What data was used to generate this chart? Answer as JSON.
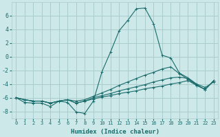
{
  "xlabel": "Humidex (Indice chaleur)",
  "background_color": "#cce8e8",
  "grid_color": "#aacccc",
  "line_color": "#1a6b6b",
  "xlim": [
    -0.5,
    23.5
  ],
  "ylim": [
    -9,
    8
  ],
  "yticks": [
    -8,
    -6,
    -4,
    -2,
    0,
    2,
    4,
    6
  ],
  "xticks": [
    0,
    1,
    2,
    3,
    4,
    5,
    6,
    7,
    8,
    9,
    10,
    11,
    12,
    13,
    14,
    15,
    16,
    17,
    18,
    19,
    20,
    21,
    22,
    23
  ],
  "lines": [
    {
      "x": [
        0,
        1,
        2,
        3,
        4,
        5,
        6,
        7,
        8,
        9,
        10,
        11,
        12,
        13,
        14,
        15,
        16,
        17,
        18,
        19,
        20,
        21,
        22,
        23
      ],
      "y": [
        -6.0,
        -6.7,
        -6.8,
        -6.8,
        -7.3,
        -6.5,
        -6.7,
        -8.1,
        -8.3,
        -6.5,
        -2.2,
        0.7,
        3.8,
        5.3,
        7.0,
        7.1,
        4.8,
        0.2,
        -0.2,
        -2.4,
        -3.1,
        -4.0,
        -4.5,
        -3.7
      ]
    },
    {
      "x": [
        0,
        1,
        2,
        3,
        4,
        5,
        6,
        7,
        8,
        9,
        10,
        11,
        12,
        13,
        14,
        15,
        16,
        17,
        18,
        19,
        20,
        21,
        22,
        23
      ],
      "y": [
        -6.0,
        -6.3,
        -6.5,
        -6.5,
        -6.8,
        -6.5,
        -6.3,
        -6.5,
        -6.3,
        -5.8,
        -5.3,
        -4.8,
        -4.2,
        -3.7,
        -3.2,
        -2.7,
        -2.3,
        -1.8,
        -1.5,
        -2.5,
        -3.3,
        -4.2,
        -4.8,
        -3.5
      ]
    },
    {
      "x": [
        0,
        1,
        2,
        3,
        4,
        5,
        6,
        7,
        8,
        9,
        10,
        11,
        12,
        13,
        14,
        15,
        16,
        17,
        18,
        19,
        20,
        21,
        22,
        23
      ],
      "y": [
        -6.0,
        -6.3,
        -6.5,
        -6.5,
        -6.8,
        -6.5,
        -6.3,
        -6.8,
        -6.5,
        -6.0,
        -5.7,
        -5.4,
        -5.0,
        -4.7,
        -4.4,
        -4.1,
        -3.7,
        -3.4,
        -3.1,
        -3.0,
        -3.2,
        -4.1,
        -4.8,
        -3.5
      ]
    },
    {
      "x": [
        0,
        1,
        2,
        3,
        4,
        5,
        6,
        7,
        8,
        9,
        10,
        11,
        12,
        13,
        14,
        15,
        16,
        17,
        18,
        19,
        20,
        21,
        22,
        23
      ],
      "y": [
        -6.0,
        -6.3,
        -6.5,
        -6.5,
        -6.8,
        -6.5,
        -6.3,
        -6.8,
        -6.5,
        -6.2,
        -5.9,
        -5.7,
        -5.4,
        -5.2,
        -5.0,
        -4.7,
        -4.5,
        -4.3,
        -4.0,
        -3.8,
        -3.5,
        -4.2,
        -4.8,
        -3.5
      ]
    }
  ]
}
